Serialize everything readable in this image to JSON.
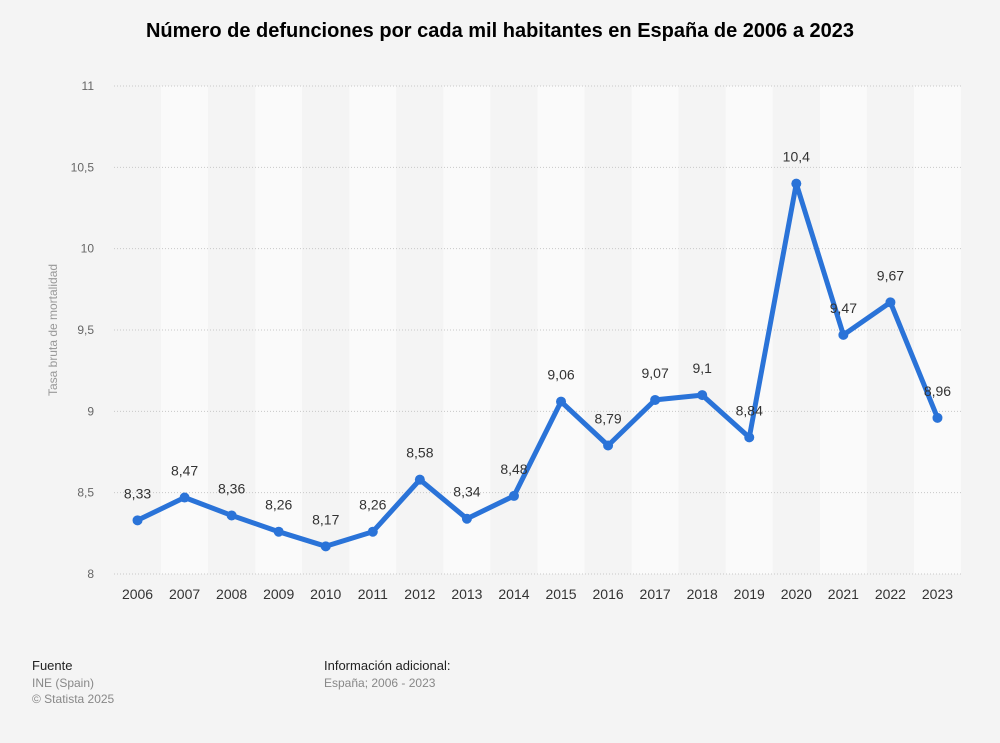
{
  "chart_data": {
    "type": "line",
    "title": "Número de defunciones por cada mil habitantes en España de 2006 a 2023",
    "ylabel": "Tasa bruta de mortalidad",
    "xlabel": "",
    "ylim": [
      8,
      11
    ],
    "y_ticks": [
      "8",
      "8,5",
      "9",
      "9,5",
      "10",
      "10,5",
      "11"
    ],
    "y_tick_values": [
      8,
      8.5,
      9,
      9.5,
      10,
      10.5,
      11
    ],
    "categories": [
      "2006",
      "2007",
      "2008",
      "2009",
      "2010",
      "2011",
      "2012",
      "2013",
      "2014",
      "2015",
      "2016",
      "2017",
      "2018",
      "2019",
      "2020",
      "2021",
      "2022",
      "2023"
    ],
    "values": [
      8.33,
      8.47,
      8.36,
      8.26,
      8.17,
      8.26,
      8.58,
      8.34,
      8.48,
      9.06,
      8.79,
      9.07,
      9.1,
      8.84,
      10.4,
      9.47,
      9.67,
      8.96
    ],
    "value_labels": [
      "8,33",
      "8,47",
      "8,36",
      "8,26",
      "8,17",
      "8,26",
      "8,58",
      "8,34",
      "8,48",
      "9,06",
      "8,79",
      "9,07",
      "9,1",
      "8,84",
      "10,4",
      "9,47",
      "9,67",
      "8,96"
    ],
    "line_color": "#2a73d8",
    "grid": true,
    "legend": "none"
  },
  "footer": {
    "source_heading": "Fuente",
    "source_text": "INE (Spain)",
    "copyright": "© Statista 2025",
    "info_heading": "Información adicional:",
    "info_text": "España; 2006 - 2023"
  }
}
